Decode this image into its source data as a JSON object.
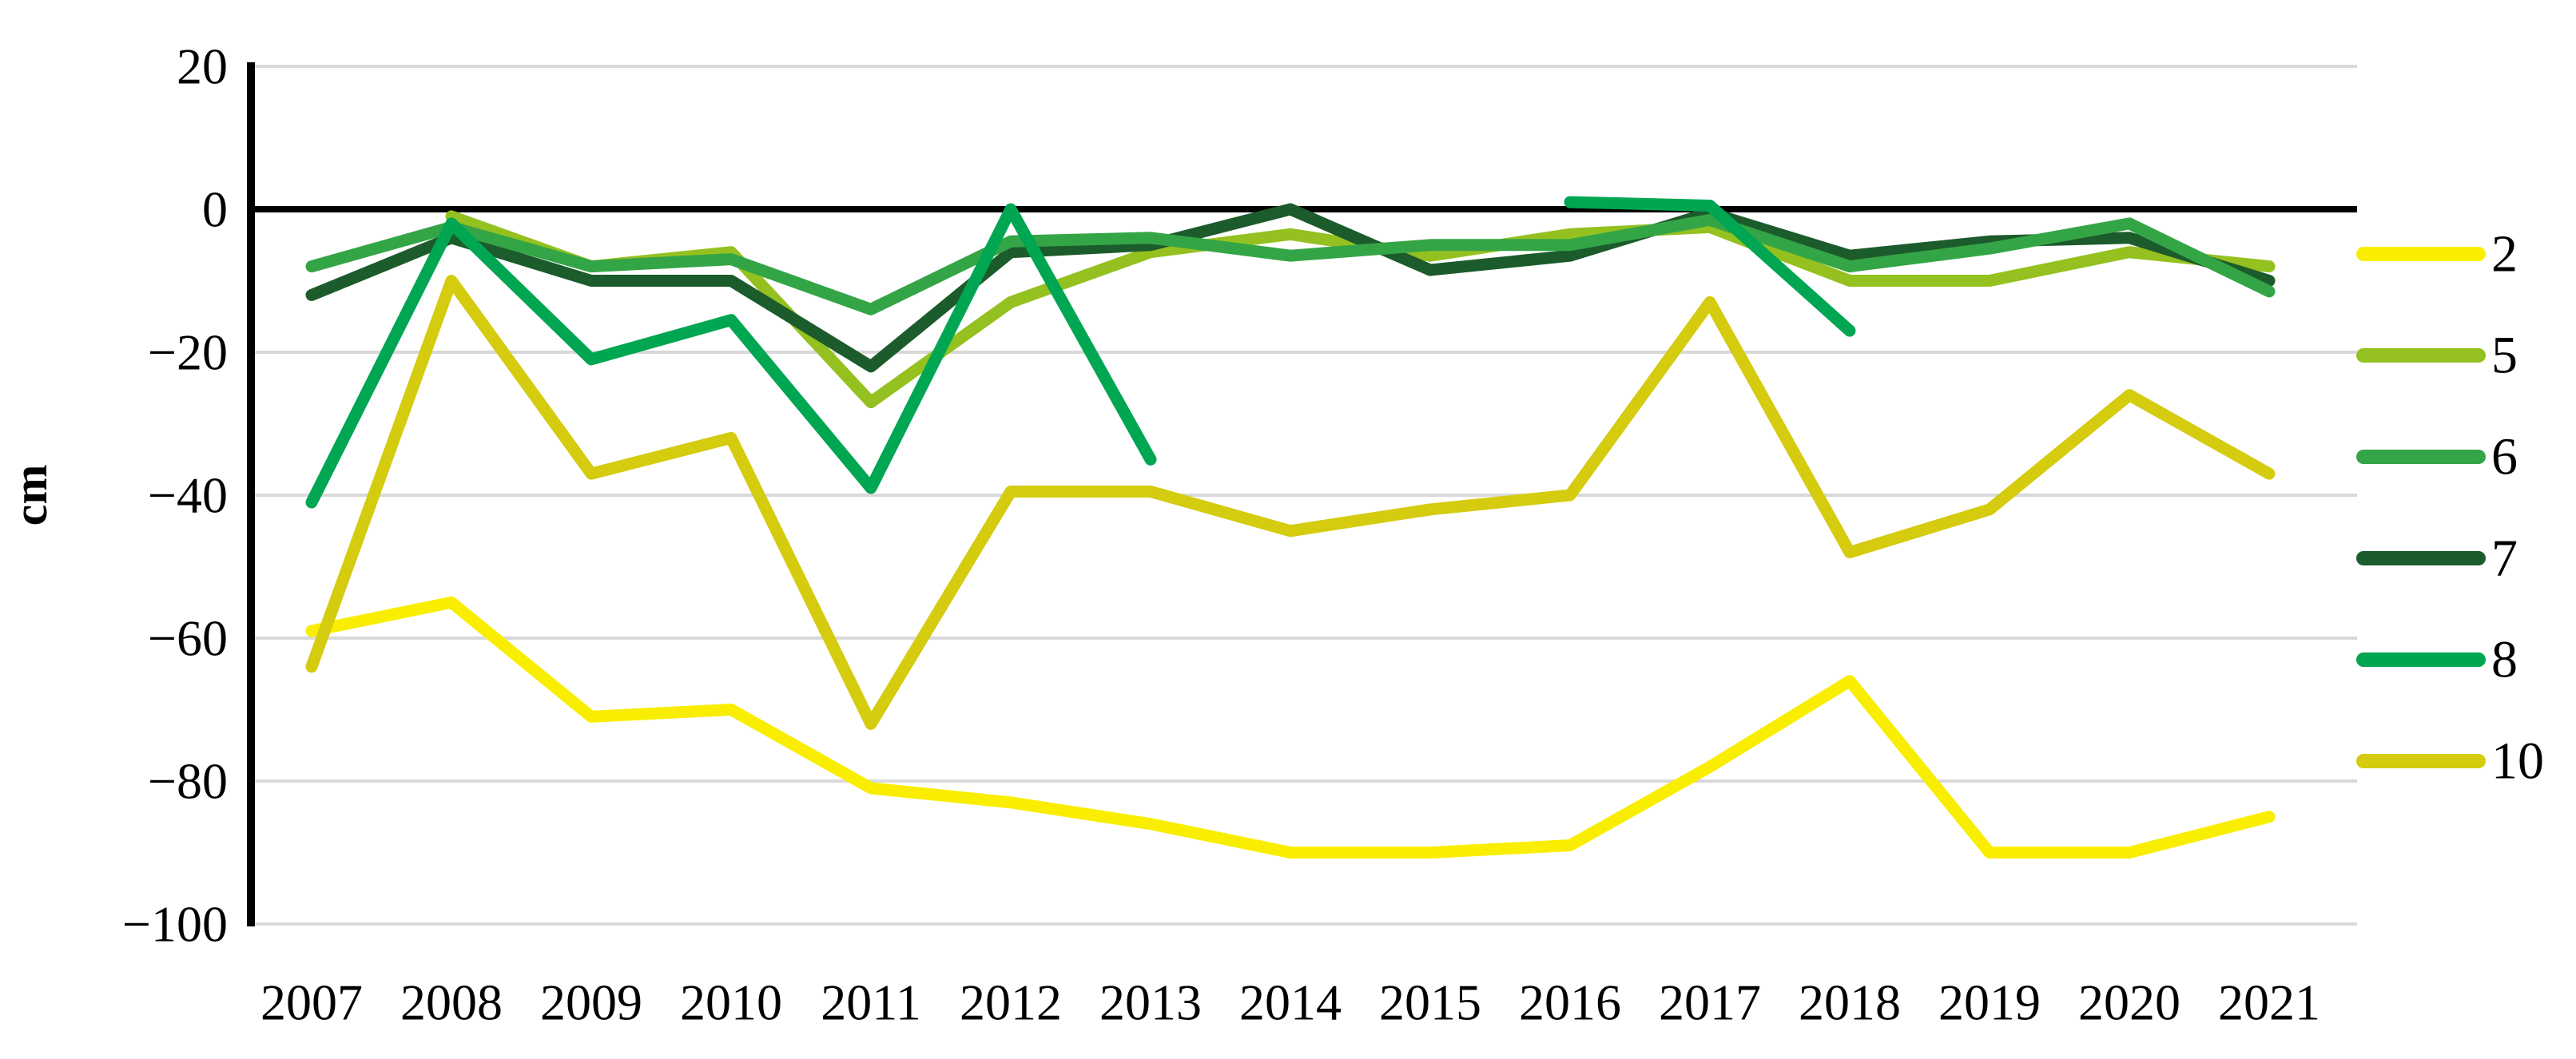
{
  "figure": {
    "background": "#ffffff",
    "y_axis_title": "cm"
  },
  "chart_data": {
    "type": "line",
    "title": "",
    "xlabel": "",
    "ylabel": "cm",
    "grid": true,
    "grid_color": "#d9d9d9",
    "axis_color": "#000000",
    "ylim": [
      -100,
      20
    ],
    "yticks": [
      20,
      0,
      -20,
      -40,
      -60,
      -80,
      -100
    ],
    "categories": [
      2007,
      2008,
      2009,
      2010,
      2011,
      2012,
      2013,
      2014,
      2015,
      2016,
      2017,
      2018,
      2019,
      2020,
      2021
    ],
    "legend_position": "right",
    "legend_order": [
      "2",
      "5",
      "6",
      "7",
      "8",
      "10"
    ],
    "draw_order": [
      "2",
      "10",
      "5",
      "7",
      "6",
      "8"
    ],
    "series": [
      {
        "name": "2",
        "color": "#f9ee00",
        "values": [
          -59,
          -55,
          -71,
          -70,
          -81,
          -83,
          -86,
          -90,
          -90,
          -89,
          -78,
          -66,
          -90,
          -90,
          -85
        ]
      },
      {
        "name": "5",
        "color": "#94c11f",
        "values": [
          null,
          -1,
          -8,
          -6,
          -27,
          -13,
          -6,
          -3.5,
          -6.5,
          -3.5,
          -2.5,
          -10,
          -10,
          -6,
          -8
        ]
      },
      {
        "name": "6",
        "color": "#34a546",
        "values": [
          -8,
          -2.5,
          -8,
          -7,
          -14,
          -4.5,
          -4,
          -6.5,
          -5,
          -5,
          -1.5,
          -8,
          -5.5,
          -2,
          -11.5
        ]
      },
      {
        "name": "7",
        "color": "#1c5b2b",
        "values": [
          -12,
          -4,
          -10,
          -10,
          -22,
          -6,
          -5,
          0,
          -8.5,
          -6.5,
          -0.5,
          -6.5,
          -4.5,
          -4,
          -10
        ]
      },
      {
        "name": "8",
        "color": "#00a651",
        "values": [
          -41,
          -2,
          -21,
          -15.5,
          -39,
          0,
          -35,
          null,
          null,
          1,
          0.5,
          -17,
          null,
          null,
          null
        ]
      },
      {
        "name": "10",
        "color": "#d5cb0f",
        "values": [
          -64,
          -10,
          -37,
          -32,
          -72,
          -39.5,
          -39.5,
          -45,
          -42,
          -40,
          -13,
          -48,
          -42,
          -26,
          -37
        ]
      }
    ]
  }
}
